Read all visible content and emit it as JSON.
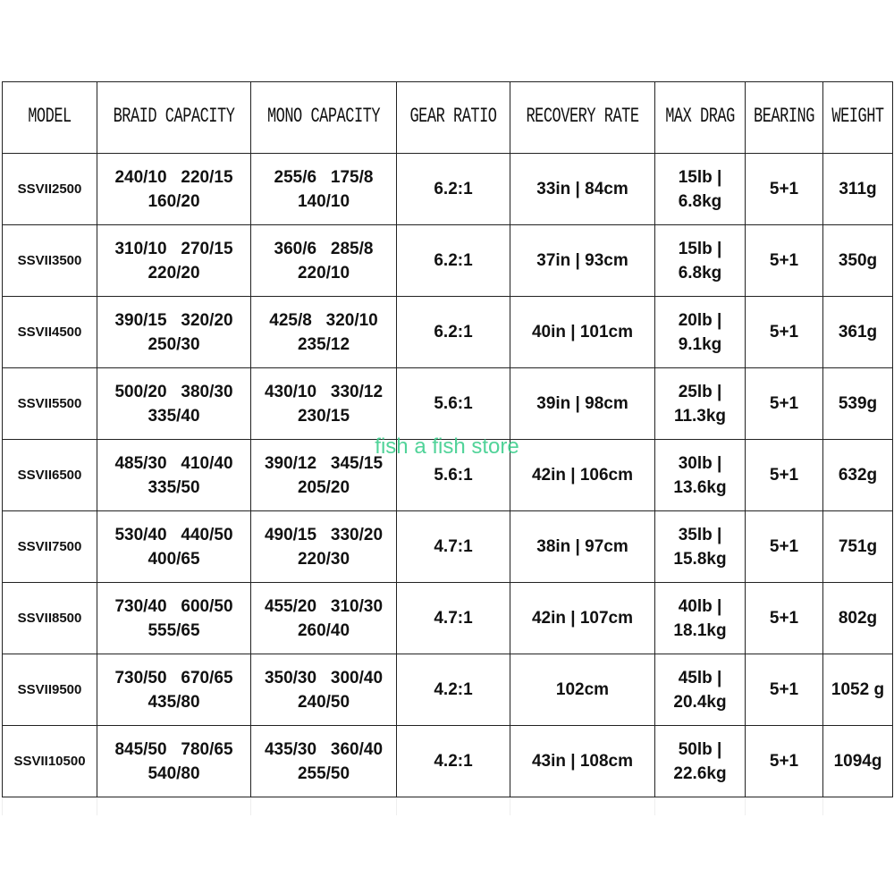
{
  "headers": [
    "MODEL",
    "BRAID CAPACITY",
    "MONO CAPACITY",
    "GEAR RATIO",
    "RECOVERY RATE",
    "MAX DRAG",
    "BEARING",
    "WEIGHT"
  ],
  "rows": [
    {
      "model": "SSVII2500",
      "braid": [
        "240/10   220/15",
        "160/20"
      ],
      "mono": [
        "255/6   175/8",
        "140/10"
      ],
      "gear": "6.2:1",
      "recovery": "33in | 84cm",
      "drag": [
        "15lb |",
        "6.8kg"
      ],
      "bearing": "5+1",
      "weight": "311g"
    },
    {
      "model": "SSVII3500",
      "braid": [
        "310/10   270/15",
        "220/20"
      ],
      "mono": [
        "360/6   285/8",
        "220/10"
      ],
      "gear": "6.2:1",
      "recovery": "37in | 93cm",
      "drag": [
        "15lb |",
        "6.8kg"
      ],
      "bearing": "5+1",
      "weight": "350g"
    },
    {
      "model": "SSVII4500",
      "braid": [
        "390/15   320/20",
        "250/30"
      ],
      "mono": [
        "425/8   320/10",
        "235/12"
      ],
      "gear": "6.2:1",
      "recovery": "40in | 101cm",
      "drag": [
        "20lb |",
        "9.1kg"
      ],
      "bearing": "5+1",
      "weight": "361g"
    },
    {
      "model": "SSVII5500",
      "braid": [
        "500/20   380/30",
        "335/40"
      ],
      "mono": [
        "430/10   330/12",
        "230/15"
      ],
      "gear": "5.6:1",
      "recovery": "39in | 98cm",
      "drag": [
        "25lb |",
        "11.3kg"
      ],
      "bearing": "5+1",
      "weight": "539g"
    },
    {
      "model": "SSVII6500",
      "braid": [
        "485/30   410/40",
        "335/50"
      ],
      "mono": [
        "390/12   345/15",
        "205/20"
      ],
      "gear": "5.6:1",
      "recovery": "42in | 106cm",
      "drag": [
        "30lb |",
        "13.6kg"
      ],
      "bearing": "5+1",
      "weight": "632g"
    },
    {
      "model": "SSVII7500",
      "braid": [
        "530/40   440/50",
        "400/65"
      ],
      "mono": [
        "490/15   330/20",
        "220/30"
      ],
      "gear": "4.7:1",
      "recovery": "38in | 97cm",
      "drag": [
        "35lb |",
        "15.8kg"
      ],
      "bearing": "5+1",
      "weight": "751g"
    },
    {
      "model": "SSVII8500",
      "braid": [
        "730/40   600/50",
        "555/65"
      ],
      "mono": [
        "455/20   310/30",
        "260/40"
      ],
      "gear": "4.7:1",
      "recovery": "42in | 107cm",
      "drag": [
        "40lb |",
        "18.1kg"
      ],
      "bearing": "5+1",
      "weight": "802g"
    },
    {
      "model": "SSVII9500",
      "braid": [
        "730/50   670/65",
        "435/80"
      ],
      "mono": [
        "350/30   300/40",
        "240/50"
      ],
      "gear": "4.2:1",
      "recovery": "102cm",
      "drag": [
        "45lb |",
        "20.4kg"
      ],
      "bearing": "5+1",
      "weight": "1052 g"
    },
    {
      "model": "SSVII10500",
      "braid": [
        "845/50   780/65",
        "540/80"
      ],
      "mono": [
        "435/30   360/40",
        "255/50"
      ],
      "gear": "4.2:1",
      "recovery": "43in | 108cm",
      "drag": [
        "50lb |",
        "22.6kg"
      ],
      "bearing": "5+1",
      "weight": "1094g"
    }
  ],
  "watermark": "fish a fish store",
  "colors": {
    "watermark": "#3fcf8e",
    "border": "#222222"
  }
}
